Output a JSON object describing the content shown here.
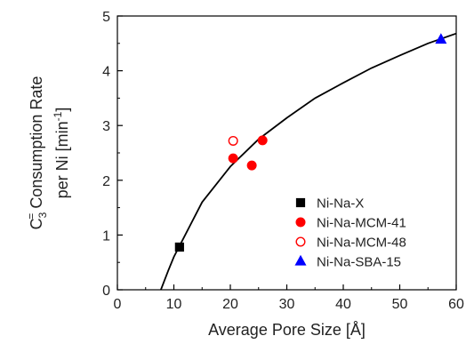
{
  "chart_data": {
    "type": "scatter",
    "xlabel": "Average Pore Size [Å]",
    "ylabel_line1": "C",
    "ylabel_line1_sub": "3",
    "ylabel_line1_sup": "=",
    "ylabel_line1_rest": " Consumption Rate",
    "ylabel_line2": "per Ni [min",
    "ylabel_line2_sup": "-1",
    "ylabel_line2_end": "]",
    "xlim": [
      0,
      60
    ],
    "ylim": [
      0,
      5
    ],
    "xticks": [
      0,
      10,
      20,
      30,
      40,
      50,
      60
    ],
    "yticks": [
      0,
      1,
      2,
      3,
      4,
      5
    ],
    "legend_position": "bottom-right",
    "grid": false,
    "series": [
      {
        "name": "Ni-Na-X",
        "marker": "square",
        "filled": true,
        "color": "#000000",
        "points": [
          [
            11.0,
            0.78
          ]
        ]
      },
      {
        "name": "Ni-Na-MCM-41",
        "marker": "circle",
        "filled": true,
        "color": "#ff0000",
        "points": [
          [
            20.5,
            2.4
          ],
          [
            23.8,
            2.27
          ],
          [
            25.7,
            2.73
          ]
        ]
      },
      {
        "name": "Ni-Na-MCM-48",
        "marker": "circle",
        "filled": false,
        "color": "#ff0000",
        "points": [
          [
            20.5,
            2.72
          ]
        ]
      },
      {
        "name": "Ni-Na-SBA-15",
        "marker": "triangle",
        "filled": true,
        "color": "#0000ff",
        "points": [
          [
            57.3,
            4.57
          ]
        ]
      }
    ],
    "fit_curve": {
      "color": "#000000",
      "points": [
        [
          7.7,
          0.0
        ],
        [
          9,
          0.35
        ],
        [
          10,
          0.6
        ],
        [
          12,
          1.0
        ],
        [
          15,
          1.6
        ],
        [
          20,
          2.25
        ],
        [
          25,
          2.75
        ],
        [
          30,
          3.14
        ],
        [
          35,
          3.5
        ],
        [
          40,
          3.78
        ],
        [
          45,
          4.05
        ],
        [
          50,
          4.28
        ],
        [
          55,
          4.5
        ],
        [
          60,
          4.68
        ]
      ]
    }
  }
}
